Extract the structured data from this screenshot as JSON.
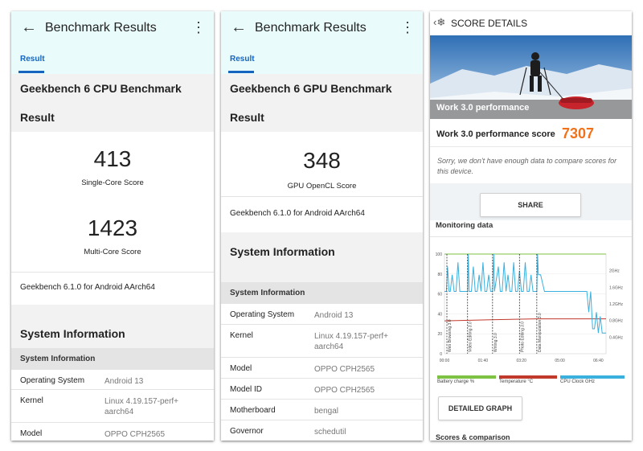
{
  "cpu_panel": {
    "header_title": "Benchmark Results",
    "tab": "Result",
    "benchmark_title": "Geekbench 6 CPU Benchmark",
    "result_heading": "Result",
    "single_core_score": "413",
    "single_core_label": "Single-Core Score",
    "multi_core_score": "1423",
    "multi_core_label": "Multi-Core Score",
    "version": "Geekbench 6.1.0 for Android AArch64",
    "system_info_title": "System Information",
    "system_info_sub": "System Information",
    "rows": [
      {
        "k": "Operating System",
        "v": "Android 13"
      },
      {
        "k": "Kernel",
        "v": "Linux 4.19.157-perf+\naarch64"
      },
      {
        "k": "Model",
        "v": "OPPO CPH2565"
      }
    ]
  },
  "gpu_panel": {
    "header_title": "Benchmark Results",
    "tab": "Result",
    "benchmark_title": "Geekbench 6 GPU Benchmark",
    "result_heading": "Result",
    "score": "348",
    "score_label": "GPU OpenCL Score",
    "version": "Geekbench 6.1.0 for Android AArch64",
    "system_info_title": "System Information",
    "system_info_sub": "System Information",
    "rows": [
      {
        "k": "Operating System",
        "v": "Android 13"
      },
      {
        "k": "Kernel",
        "v": "Linux 4.19.157-perf+\naarch64"
      },
      {
        "k": "Model",
        "v": "OPPO CPH2565"
      },
      {
        "k": "Model ID",
        "v": "OPPO CPH2565"
      },
      {
        "k": "Motherboard",
        "v": "bengal"
      },
      {
        "k": "Governor",
        "v": "schedutil"
      }
    ]
  },
  "score_panel": {
    "title": "SCORE DETAILS",
    "hero_label": "Work 3.0 performance",
    "score_label": "Work 3.0 performance score",
    "score_value": "7307",
    "note": "Sorry, we don't have enough data to compare scores for this device.",
    "share_button": "SHARE",
    "monitoring_title": "Monitoring data",
    "detailed_button": "DETAILED GRAPH",
    "scores_title": "Scores & comparison",
    "legend": [
      {
        "label": "Battery charge %",
        "color": "#7dc242"
      },
      {
        "label": "Temperature °C",
        "color": "#c0392b"
      },
      {
        "label": "CPU Clock GHz",
        "color": "#3ab0de"
      }
    ]
  },
  "chart_data": {
    "type": "line",
    "title": "",
    "x_ticks": [
      "00:00",
      "01:40",
      "03:20",
      "05:00",
      "06:40"
    ],
    "y_left_ticks": [
      "100",
      "80",
      "60",
      "40",
      "20",
      "0"
    ],
    "y_right_ticks": [
      "2GHz",
      "1.6GHz",
      "1.2GHz",
      "0.8GHz",
      "0.4GHz"
    ],
    "markers": [
      "Web Browsing 3.0",
      "Video Editing 3.0",
      "Writing 3.0",
      "Photo Editing 3.0",
      "Data Manipulation 3.0"
    ],
    "xlim": [
      0,
      420
    ],
    "ylim_left": [
      0,
      100
    ],
    "ylim_right": [
      0,
      2.4
    ],
    "marker_x": [
      0,
      60,
      125,
      195,
      240
    ],
    "series": [
      {
        "name": "Battery charge %",
        "axis": "left",
        "color": "#7dc242",
        "x": [
          0,
          420
        ],
        "y": [
          100,
          100
        ]
      },
      {
        "name": "Temperature °C",
        "axis": "left",
        "color": "#c0392b",
        "x": [
          0,
          120,
          240,
          420
        ],
        "y": [
          33,
          34,
          35,
          35
        ]
      },
      {
        "name": "CPU Clock GHz",
        "axis": "right",
        "color": "#3ab0de",
        "x": [
          0,
          5,
          8,
          12,
          15,
          20,
          25,
          30,
          35,
          40,
          50,
          60,
          62,
          64,
          70,
          75,
          80,
          85,
          90,
          95,
          100,
          105,
          110,
          115,
          120,
          125,
          128,
          130,
          140,
          145,
          150,
          155,
          160,
          165,
          170,
          175,
          180,
          185,
          190,
          195,
          200,
          205,
          210,
          215,
          220,
          225,
          230,
          240,
          242,
          244,
          250,
          260,
          270,
          280,
          300,
          320,
          340,
          360,
          370,
          375,
          380,
          385,
          390,
          395,
          400,
          405,
          410,
          420
        ],
        "y": [
          1.5,
          1.5,
          2.1,
          1.5,
          1.5,
          1.9,
          1.5,
          1.5,
          2.2,
          1.5,
          1.5,
          1.5,
          2.4,
          1.5,
          1.5,
          2.1,
          1.5,
          1.5,
          1.9,
          1.5,
          2.2,
          1.5,
          1.5,
          1.9,
          1.5,
          1.5,
          2.4,
          1.5,
          2.1,
          1.5,
          1.5,
          2.2,
          1.5,
          1.9,
          1.5,
          1.5,
          2.2,
          1.5,
          1.5,
          2.0,
          1.5,
          1.5,
          2.2,
          1.5,
          1.5,
          1.9,
          1.5,
          1.5,
          2.4,
          1.9,
          1.9,
          1.5,
          1.5,
          1.5,
          1.5,
          1.5,
          1.5,
          1.5,
          1.5,
          1.0,
          1.5,
          0.6,
          0.6,
          1.0,
          0.5,
          0.9,
          0.5,
          0.5
        ]
      }
    ],
    "grid": true,
    "legend_position": "bottom"
  }
}
